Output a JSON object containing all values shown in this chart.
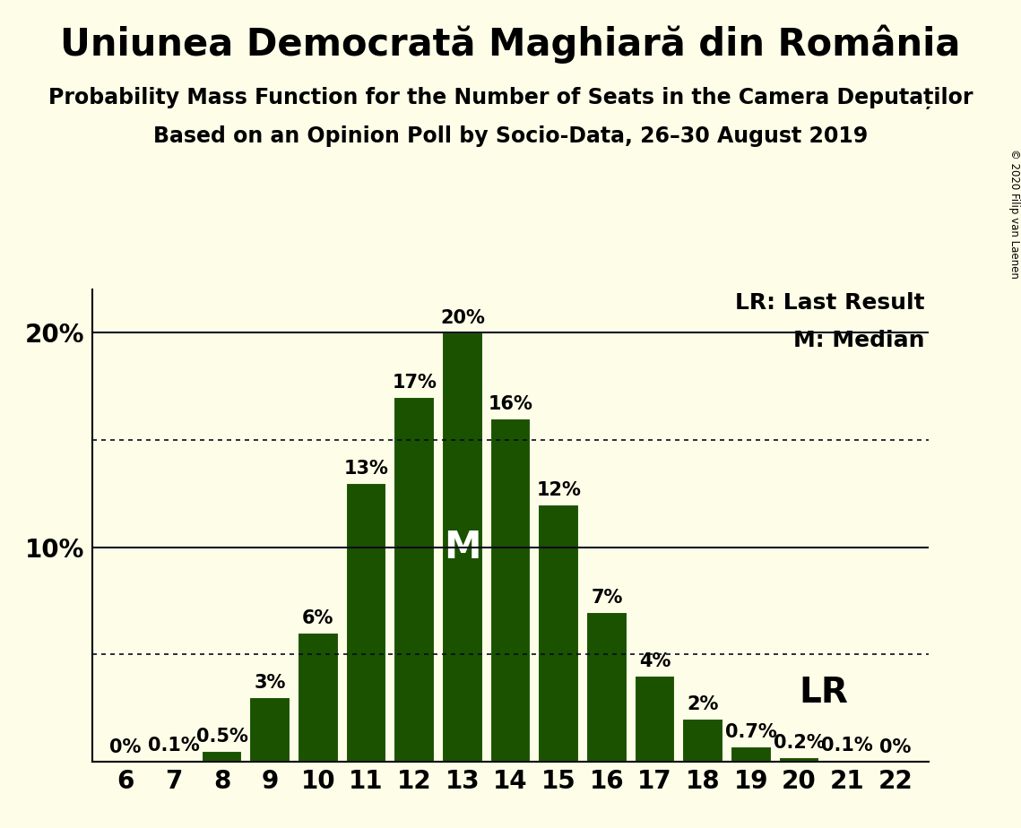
{
  "title": "Uniunea Democrată Maghiară din România",
  "subtitle1": "Probability Mass Function for the Number of Seats in the Camera Deputaților",
  "subtitle2": "Based on an Opinion Poll by Socio-Data, 26–30 August 2019",
  "copyright": "© 2020 Filip van Laenen",
  "categories": [
    6,
    7,
    8,
    9,
    10,
    11,
    12,
    13,
    14,
    15,
    16,
    17,
    18,
    19,
    20,
    21,
    22
  ],
  "values": [
    0.0,
    0.1,
    0.5,
    3.0,
    6.0,
    13.0,
    17.0,
    20.0,
    16.0,
    12.0,
    7.0,
    4.0,
    2.0,
    0.7,
    0.2,
    0.1,
    0.0
  ],
  "labels": [
    "0%",
    "0.1%",
    "0.5%",
    "3%",
    "6%",
    "13%",
    "17%",
    "20%",
    "16%",
    "12%",
    "7%",
    "4%",
    "2%",
    "0.7%",
    "0.2%",
    "0.1%",
    "0%"
  ],
  "bar_color": "#1a5200",
  "background_color": "#fefee8",
  "median_bar": 13,
  "lr_value": 18,
  "ylim_max": 22,
  "solid_ylines": [
    10,
    20
  ],
  "dotted_ylines": [
    5,
    15
  ],
  "title_fontsize": 30,
  "subtitle_fontsize": 17,
  "bar_label_fontsize": 15,
  "axis_tick_fontsize": 20,
  "legend_fontsize": 18,
  "median_fontsize": 30,
  "lr_fontsize": 28
}
